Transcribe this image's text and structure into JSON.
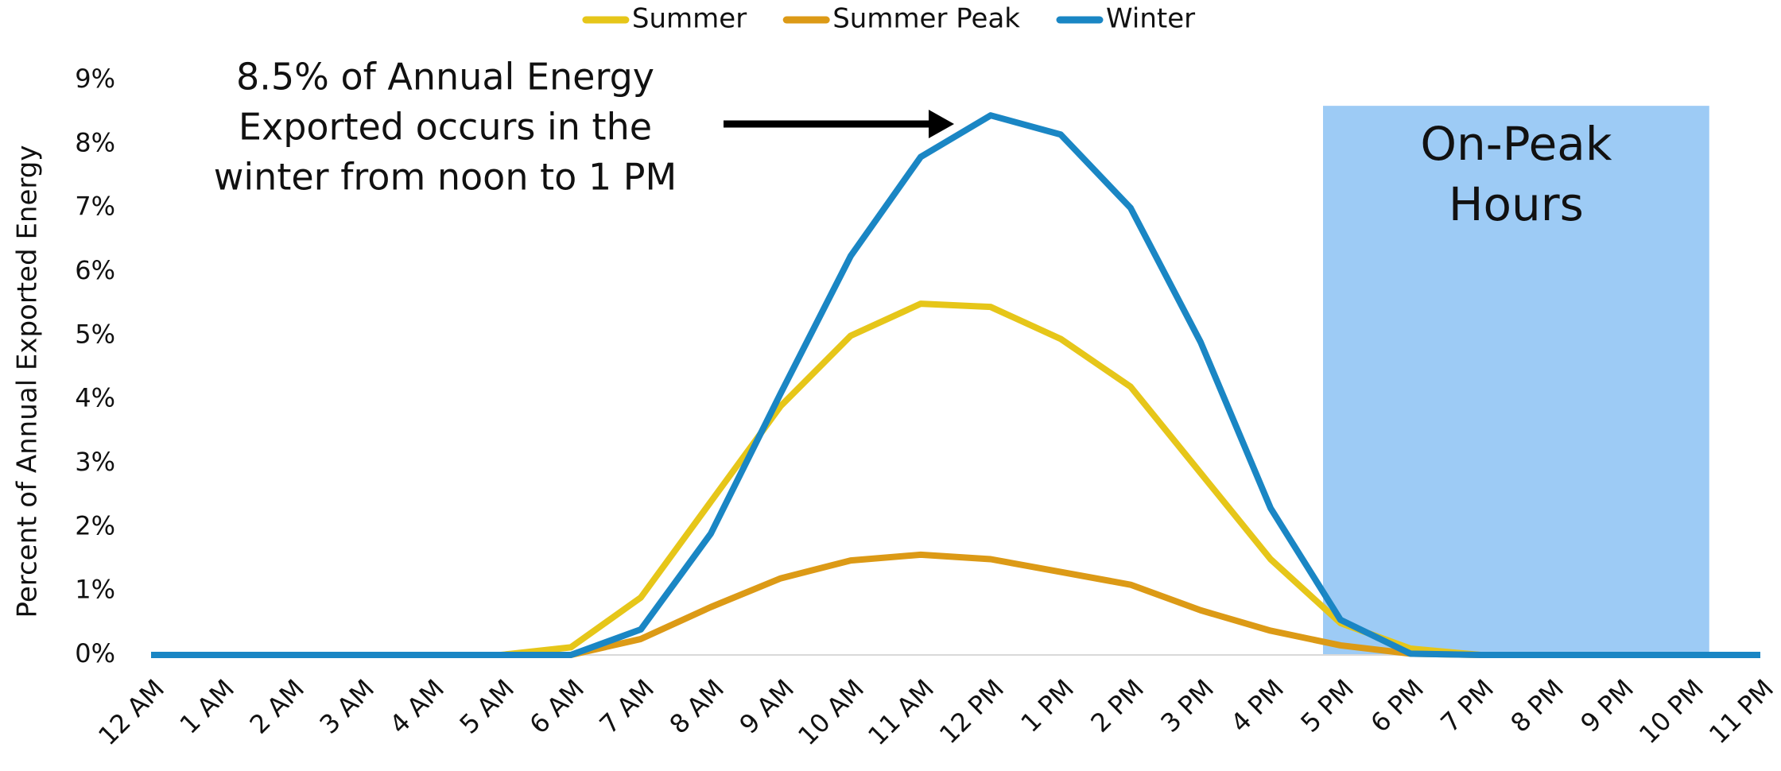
{
  "chart_data": {
    "type": "line",
    "y_label": "Percent of Annual Exported Energy",
    "categories": [
      "12 AM",
      "1 AM",
      "2 AM",
      "3 AM",
      "4 AM",
      "5 AM",
      "6 AM",
      "7 AM",
      "8 AM",
      "9 AM",
      "10 AM",
      "11 AM",
      "12 PM",
      "1 PM",
      "2 PM",
      "3 PM",
      "4 PM",
      "5 PM",
      "6 PM",
      "7 PM",
      "8 PM",
      "9 PM",
      "10 PM",
      "11 PM"
    ],
    "series": [
      {
        "name": "Summer",
        "color": "#e6c619",
        "values": [
          0,
          0,
          0,
          0,
          0,
          0,
          0.12,
          0.9,
          2.4,
          3.9,
          5.0,
          5.5,
          5.45,
          4.95,
          4.2,
          2.85,
          1.5,
          0.5,
          0.1,
          0,
          0,
          0,
          0,
          0
        ]
      },
      {
        "name": "Summer Peak",
        "color": "#dc9a16",
        "values": [
          0,
          0,
          0,
          0,
          0,
          0,
          0,
          0.25,
          0.75,
          1.2,
          1.48,
          1.57,
          1.5,
          1.3,
          1.1,
          0.7,
          0.38,
          0.15,
          0.02,
          0,
          0,
          0,
          0,
          0
        ]
      },
      {
        "name": "Winter",
        "color": "#1a86c4",
        "values": [
          0,
          0,
          0,
          0,
          0,
          0,
          0,
          0.4,
          1.9,
          4.1,
          6.25,
          7.8,
          8.45,
          8.15,
          7.0,
          4.9,
          2.3,
          0.55,
          0.02,
          0,
          0,
          0,
          0,
          0
        ]
      }
    ],
    "ylim": [
      0,
      9
    ],
    "yticks": [
      {
        "value": 0,
        "label": "0%"
      },
      {
        "value": 1,
        "label": "1%"
      },
      {
        "value": 2,
        "label": "2%"
      },
      {
        "value": 3,
        "label": "3%"
      },
      {
        "value": 4,
        "label": "4%"
      },
      {
        "value": 5,
        "label": "5%"
      },
      {
        "value": 6,
        "label": "6%"
      },
      {
        "value": 7,
        "label": "7%"
      },
      {
        "value": 8,
        "label": "8%"
      },
      {
        "value": 9,
        "label": "9%"
      }
    ],
    "legend": "top",
    "annotation": {
      "lines": [
        "8.5% of Annual Energy",
        "Exported occurs in the",
        "winter from noon to 1 PM"
      ]
    },
    "shaded_region": {
      "lines": [
        "On-Peak",
        "Hours"
      ],
      "x_range": [
        "5 PM",
        "10 PM"
      ],
      "top": 8.6,
      "color": "#9dcbf5"
    }
  }
}
